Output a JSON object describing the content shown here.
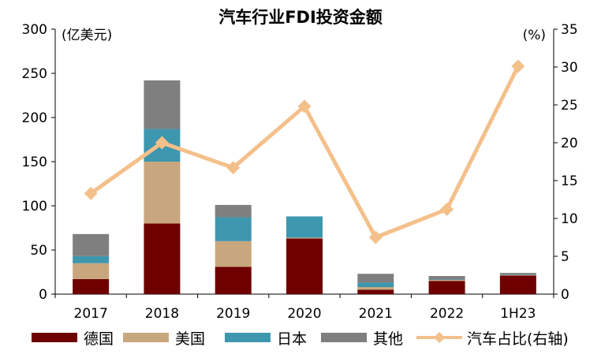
{
  "colors": {
    "germany": "#6E0000",
    "us": "#C9A77E",
    "japan": "#3D97AE",
    "other": "#7F7F7F",
    "share": "#F4C08A",
    "axis": "#000000"
  },
  "chart_data": {
    "type": "bar",
    "title": "汽车行业FDI投资金额",
    "left_unit": "(亿美元)",
    "right_unit": "(%)",
    "categories": [
      "2017",
      "2018",
      "2019",
      "2020",
      "2021",
      "2022",
      "1H23"
    ],
    "left_ylim": [
      0,
      300
    ],
    "left_ticks": [
      "0",
      "50",
      "100",
      "150",
      "200",
      "250",
      "300"
    ],
    "right_ylim": [
      0,
      35
    ],
    "right_ticks": [
      "0",
      "5",
      "10",
      "15",
      "20",
      "25",
      "30",
      "35"
    ],
    "stacked": true,
    "series": [
      {
        "name": "德国",
        "key": "germany",
        "values": [
          17,
          80,
          31,
          63,
          5,
          15,
          21
        ]
      },
      {
        "name": "美国",
        "key": "us",
        "values": [
          18,
          70,
          29,
          1,
          3,
          1,
          0.5
        ]
      },
      {
        "name": "日本",
        "key": "japan",
        "values": [
          8,
          37,
          27,
          24,
          5,
          0.5,
          0.5
        ]
      },
      {
        "name": "其他",
        "key": "other",
        "values": [
          25,
          55,
          14,
          0,
          10,
          4,
          2
        ]
      }
    ],
    "line_series": {
      "name": "汽车占比(右轴)",
      "key": "share",
      "axis": "right",
      "values": [
        13.3,
        20.0,
        16.7,
        24.8,
        7.5,
        11.2,
        30.1
      ]
    }
  },
  "legend": {
    "germany": "德国",
    "us": "美国",
    "japan": "日本",
    "other": "其他",
    "share": "汽车占比(右轴)"
  }
}
